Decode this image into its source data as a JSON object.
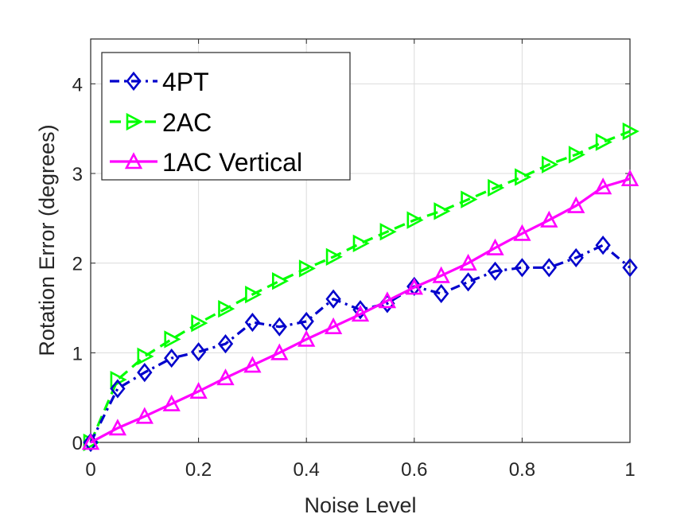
{
  "chart_data": {
    "type": "line",
    "title": "",
    "xlabel": "Noise Level",
    "ylabel": "Rotation Error (degrees)",
    "xlim": [
      0,
      1
    ],
    "ylim": [
      0,
      4.5
    ],
    "grid": true,
    "legend_position": "top-left",
    "x_ticks": [
      "0",
      "0.2",
      "0.4",
      "0.6",
      "0.8",
      "1"
    ],
    "y_ticks": [
      "0",
      "1",
      "2",
      "3",
      "4"
    ],
    "x": [
      0,
      0.05,
      0.1,
      0.15,
      0.2,
      0.25,
      0.3,
      0.35,
      0.4,
      0.45,
      0.5,
      0.55,
      0.6,
      0.65,
      0.7,
      0.75,
      0.8,
      0.85,
      0.9,
      0.95,
      1.0
    ],
    "series": [
      {
        "name": "4PT",
        "color": "#0000CC",
        "line_style": "dash-dot",
        "marker": "diamond",
        "values": [
          0,
          0.6,
          0.78,
          0.94,
          1.01,
          1.1,
          1.34,
          1.29,
          1.35,
          1.6,
          1.48,
          1.55,
          1.74,
          1.66,
          1.79,
          1.91,
          1.95,
          1.95,
          2.06,
          2.2,
          1.95
        ]
      },
      {
        "name": "2AC",
        "color": "#00FF00",
        "line_style": "dashed",
        "marker": "triangle-right",
        "values": [
          0,
          0.7,
          0.96,
          1.15,
          1.33,
          1.49,
          1.65,
          1.8,
          1.94,
          2.07,
          2.22,
          2.35,
          2.48,
          2.58,
          2.71,
          2.84,
          2.96,
          3.1,
          3.21,
          3.35,
          3.47
        ]
      },
      {
        "name": "1AC Vertical",
        "color": "#FF00FF",
        "line_style": "solid",
        "marker": "triangle-up",
        "values": [
          0,
          0.16,
          0.29,
          0.43,
          0.57,
          0.72,
          0.86,
          1.0,
          1.15,
          1.29,
          1.43,
          1.58,
          1.73,
          1.86,
          2.0,
          2.17,
          2.33,
          2.48,
          2.64,
          2.85,
          2.94
        ]
      }
    ]
  }
}
